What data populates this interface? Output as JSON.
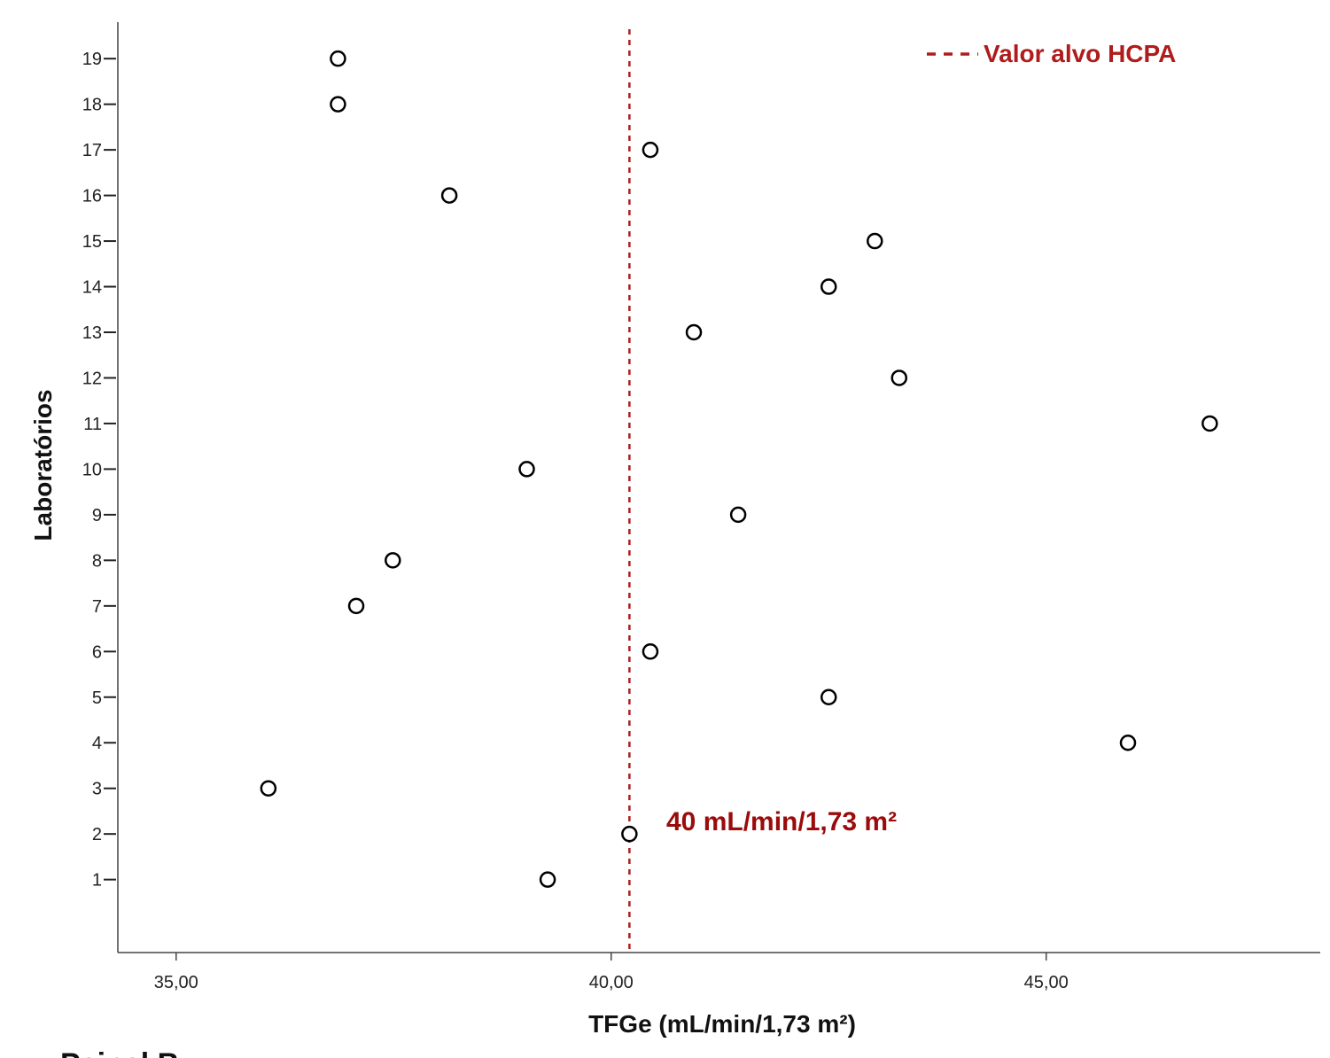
{
  "chart_data": {
    "type": "scatter",
    "x_label": "TFGe (mL/min/1,73 m²)",
    "y_label": "Laboratórios",
    "x": [
      39.27,
      40.21,
      36.06,
      45.94,
      42.5,
      40.45,
      37.07,
      37.49,
      41.46,
      39.03,
      46.88,
      43.31,
      40.95,
      42.5,
      43.03,
      38.14,
      40.45,
      36.86,
      36.86
    ],
    "values": [
      1,
      2,
      3,
      4,
      5,
      6,
      7,
      8,
      9,
      10,
      11,
      12,
      13,
      14,
      15,
      16,
      17,
      18,
      19
    ],
    "marker_color": "#000000",
    "xlim": [
      34.33,
      48.15
    ],
    "ylim": [
      -0.6,
      19.8
    ],
    "xticks": [
      {
        "value": 35,
        "label": "35,00"
      },
      {
        "value": 40,
        "label": "40,00"
      },
      {
        "value": 45,
        "label": "45,00"
      }
    ],
    "yticks": [
      1,
      2,
      3,
      4,
      5,
      6,
      7,
      8,
      9,
      10,
      11,
      12,
      13,
      14,
      15,
      16,
      17,
      18,
      19
    ],
    "reference_line": {
      "value": 40.21,
      "label": "Valor alvo HCPA",
      "color": "#b01c1c"
    },
    "annotation": "40 mL/min/1,73 m²",
    "panel_label": "Painel B"
  }
}
